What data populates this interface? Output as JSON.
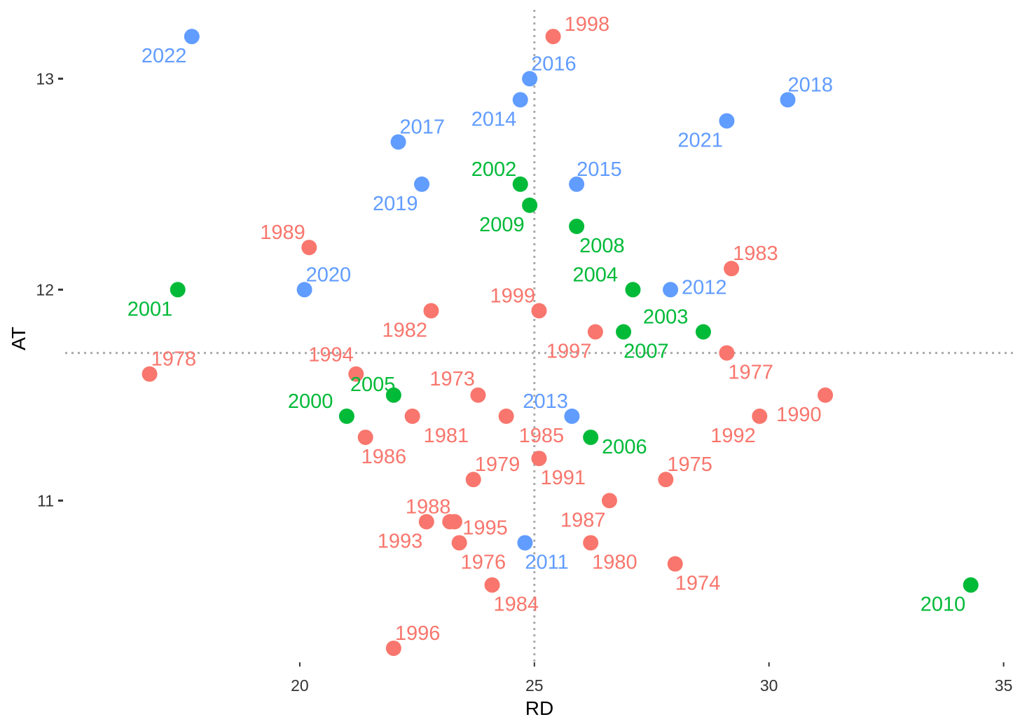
{
  "chart_data": {
    "type": "scatter",
    "title": "",
    "xlabel": "RD",
    "ylabel": "AT",
    "xlim": [
      15.0,
      35.2
    ],
    "ylim": [
      10.25,
      13.3
    ],
    "xticks": [
      20,
      25,
      30,
      35
    ],
    "yticks": [
      11,
      12,
      13
    ],
    "grid": false,
    "reference_lines": {
      "x": 25,
      "y": 11.7,
      "style": "dotted",
      "color": "#aaaaaa"
    },
    "group_colors": {
      "red": "#F8766D",
      "green": "#00BA38",
      "blue": "#619CFF"
    },
    "points": [
      {
        "label": "1973",
        "x": 23.8,
        "y": 11.5,
        "group": "red"
      },
      {
        "label": "1974",
        "x": 28.0,
        "y": 10.7,
        "group": "red"
      },
      {
        "label": "1975",
        "x": 27.8,
        "y": 11.1,
        "group": "red"
      },
      {
        "label": "1976",
        "x": 23.4,
        "y": 10.8,
        "group": "red"
      },
      {
        "label": "1977",
        "x": 29.1,
        "y": 11.7,
        "group": "red"
      },
      {
        "label": "1978",
        "x": 16.8,
        "y": 11.6,
        "group": "red"
      },
      {
        "label": "1979",
        "x": 23.7,
        "y": 11.1,
        "group": "red"
      },
      {
        "label": "1980",
        "x": 26.2,
        "y": 10.8,
        "group": "red"
      },
      {
        "label": "1981",
        "x": 22.4,
        "y": 11.4,
        "group": "red"
      },
      {
        "label": "1982",
        "x": 22.8,
        "y": 11.9,
        "group": "red"
      },
      {
        "label": "1983",
        "x": 29.2,
        "y": 12.1,
        "group": "red"
      },
      {
        "label": "1984",
        "x": 24.1,
        "y": 10.6,
        "group": "red"
      },
      {
        "label": "1985",
        "x": 24.4,
        "y": 11.4,
        "group": "red"
      },
      {
        "label": "1986",
        "x": 21.4,
        "y": 11.3,
        "group": "red"
      },
      {
        "label": "1987",
        "x": 26.6,
        "y": 11.0,
        "group": "red"
      },
      {
        "label": "1988",
        "x": 23.3,
        "y": 10.9,
        "group": "red"
      },
      {
        "label": "1989",
        "x": 20.2,
        "y": 12.2,
        "group": "red"
      },
      {
        "label": "1990",
        "x": 31.2,
        "y": 11.5,
        "group": "red"
      },
      {
        "label": "1991",
        "x": 25.1,
        "y": 11.2,
        "group": "red"
      },
      {
        "label": "1992",
        "x": 29.8,
        "y": 11.4,
        "group": "red"
      },
      {
        "label": "1993",
        "x": 22.7,
        "y": 10.9,
        "group": "red"
      },
      {
        "label": "1994",
        "x": 21.2,
        "y": 11.6,
        "group": "red"
      },
      {
        "label": "1995",
        "x": 23.2,
        "y": 10.9,
        "group": "red"
      },
      {
        "label": "1996",
        "x": 22.0,
        "y": 10.3,
        "group": "red"
      },
      {
        "label": "1997",
        "x": 26.3,
        "y": 11.8,
        "group": "red"
      },
      {
        "label": "1998",
        "x": 25.4,
        "y": 13.2,
        "group": "red"
      },
      {
        "label": "1999",
        "x": 25.1,
        "y": 11.9,
        "group": "red"
      },
      {
        "label": "2000",
        "x": 21.0,
        "y": 11.4,
        "group": "green"
      },
      {
        "label": "2001",
        "x": 17.4,
        "y": 12.0,
        "group": "green"
      },
      {
        "label": "2002",
        "x": 24.7,
        "y": 12.5,
        "group": "green"
      },
      {
        "label": "2003",
        "x": 28.6,
        "y": 11.8,
        "group": "green"
      },
      {
        "label": "2004",
        "x": 27.1,
        "y": 12.0,
        "group": "green"
      },
      {
        "label": "2005",
        "x": 22.0,
        "y": 11.5,
        "group": "green"
      },
      {
        "label": "2006",
        "x": 26.2,
        "y": 11.3,
        "group": "green"
      },
      {
        "label": "2007",
        "x": 26.9,
        "y": 11.8,
        "group": "green"
      },
      {
        "label": "2008",
        "x": 25.9,
        "y": 12.3,
        "group": "green"
      },
      {
        "label": "2009",
        "x": 24.9,
        "y": 12.4,
        "group": "green"
      },
      {
        "label": "2010",
        "x": 34.3,
        "y": 10.6,
        "group": "green"
      },
      {
        "label": "2011",
        "x": 24.8,
        "y": 10.8,
        "group": "blue"
      },
      {
        "label": "2012",
        "x": 27.9,
        "y": 12.0,
        "group": "blue"
      },
      {
        "label": "2013",
        "x": 25.8,
        "y": 11.4,
        "group": "blue"
      },
      {
        "label": "2014",
        "x": 24.7,
        "y": 12.9,
        "group": "blue"
      },
      {
        "label": "2015",
        "x": 25.9,
        "y": 12.5,
        "group": "blue"
      },
      {
        "label": "2016",
        "x": 24.9,
        "y": 13.0,
        "group": "blue"
      },
      {
        "label": "2017",
        "x": 22.1,
        "y": 12.7,
        "group": "blue"
      },
      {
        "label": "2018",
        "x": 30.4,
        "y": 12.9,
        "group": "blue"
      },
      {
        "label": "2019",
        "x": 22.6,
        "y": 12.5,
        "group": "blue"
      },
      {
        "label": "2020",
        "x": 20.1,
        "y": 12.0,
        "group": "blue"
      },
      {
        "label": "2021",
        "x": 29.1,
        "y": 12.8,
        "group": "blue"
      },
      {
        "label": "2022",
        "x": 17.7,
        "y": 13.2,
        "group": "blue"
      }
    ]
  }
}
